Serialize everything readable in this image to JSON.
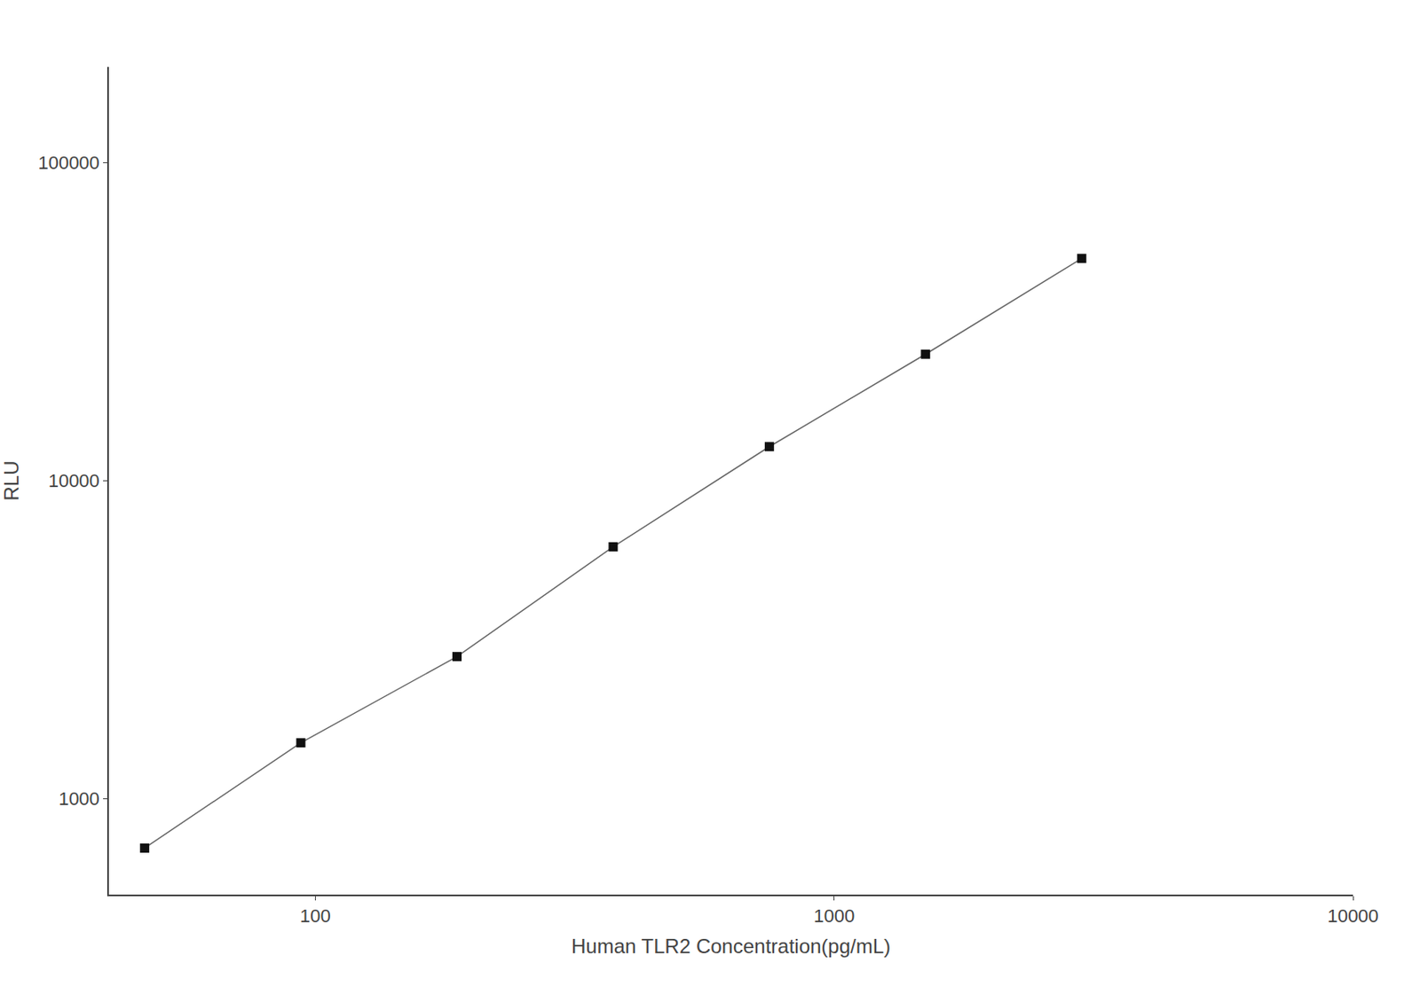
{
  "chart_data": {
    "type": "line",
    "x": [
      46.875,
      93.75,
      187.5,
      375,
      750,
      1500,
      3000
    ],
    "values": [
      700,
      1500,
      2800,
      6200,
      12800,
      25000,
      50000
    ],
    "xlabel": "Human TLR2 Concentration(pg/mL)",
    "ylabel": "RLU",
    "xlim": [
      40,
      10000
    ],
    "ylim": [
      500,
      200000
    ],
    "xticks": [
      100,
      1000,
      10000
    ],
    "yticks": [
      1000,
      10000,
      100000
    ],
    "log": true,
    "grid": false,
    "color": "#666666",
    "colors": [
      "#111111",
      "#111111",
      "#111111",
      "#111111",
      "#111111",
      "#111111",
      "#111111"
    ],
    "marker": "square"
  }
}
